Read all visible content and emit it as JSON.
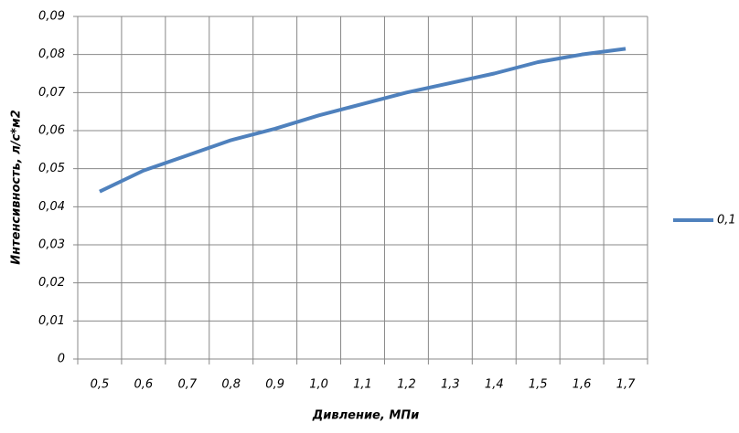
{
  "chart_data": {
    "type": "line",
    "x_label": "Дивление, МПи",
    "y_label": "Интенсивность, л/с*м2",
    "categories": [
      "0,5",
      "0,6",
      "0,7",
      "0,8",
      "0,9",
      "1,0",
      "1,1",
      "1,2",
      "1,3",
      "1,4",
      "1,5",
      "1,6",
      "1,7"
    ],
    "series": [
      {
        "name": "0,1",
        "color": "#4f81bd",
        "values": [
          0.044,
          0.0495,
          0.0535,
          0.0575,
          0.0605,
          0.064,
          0.067,
          0.07,
          0.0725,
          0.075,
          0.078,
          0.08,
          0.0815
        ]
      }
    ],
    "ylim": [
      0,
      0.09
    ],
    "yticks": [
      0,
      {
        "value": 0.01,
        "label": "0,01"
      },
      {
        "value": 0.02,
        "label": "0,02"
      },
      {
        "value": 0.03,
        "label": "0,03"
      },
      {
        "value": 0.04,
        "label": "0,04"
      },
      {
        "value": 0.05,
        "label": "0,05"
      },
      {
        "value": 0.06,
        "label": "0,06"
      },
      {
        "value": 0.07,
        "label": "0,07"
      },
      {
        "value": 0.08,
        "label": "0,08"
      },
      {
        "value": 0.09,
        "label": "0,09"
      }
    ],
    "grid": true,
    "legend": "right"
  }
}
